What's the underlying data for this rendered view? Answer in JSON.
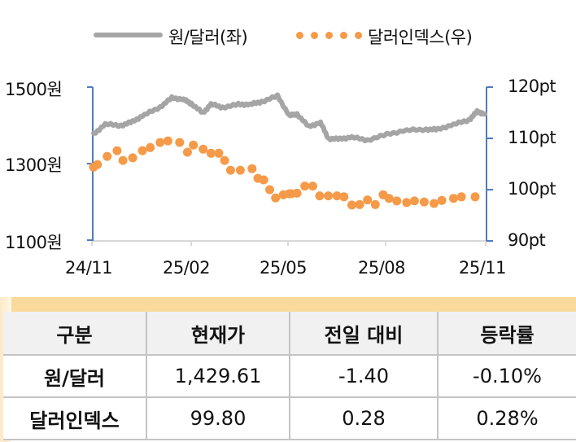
{
  "legend": {
    "series1_label": "원/달러(좌)",
    "series2_label": "달러인덱스(우)"
  },
  "axes": {
    "left_ticks": [
      "1500원",
      "1300원",
      "1100원"
    ],
    "right_ticks": [
      "120pt",
      "110pt",
      "100pt",
      "90pt"
    ],
    "x_ticks": [
      "24/11",
      "25/02",
      "25/05",
      "25/08",
      "25/11"
    ]
  },
  "colors": {
    "krw_usd_line": "#a5a5a5",
    "dollar_index_dots": "#f59a48",
    "axis": "#4f7bbd",
    "table_header_band": "#f9da9c"
  },
  "chart_data": {
    "type": "line",
    "title": "",
    "xlabel": "",
    "ylabel": "원/달러",
    "y2label": "달러인덱스",
    "x_tick_labels": [
      "24/11",
      "25/02",
      "25/05",
      "25/08",
      "25/11"
    ],
    "ylim": [
      1100,
      1500
    ],
    "y2lim": [
      90,
      120
    ],
    "grid": false,
    "legend_position": "top",
    "series": [
      {
        "name": "원/달러(좌)",
        "axis": "left",
        "style": "line",
        "color": "#a5a5a5",
        "x": [
          0,
          0.03,
          0.07,
          0.1,
          0.13,
          0.17,
          0.2,
          0.23,
          0.25,
          0.28,
          0.3,
          0.33,
          0.37,
          0.4,
          0.43,
          0.47,
          0.5,
          0.52,
          0.55,
          0.58,
          0.6,
          0.63,
          0.66,
          0.7,
          0.75,
          0.8,
          0.85,
          0.88,
          0.92,
          0.96,
          0.98,
          1.0
        ],
        "values": [
          1377,
          1404,
          1400,
          1410,
          1428,
          1448,
          1472,
          1468,
          1457,
          1432,
          1456,
          1447,
          1455,
          1455,
          1462,
          1477,
          1426,
          1430,
          1397,
          1408,
          1366,
          1365,
          1370,
          1362,
          1377,
          1388,
          1390,
          1390,
          1403,
          1415,
          1436,
          1430
        ]
      },
      {
        "name": "달러인덱스(우)",
        "axis": "right",
        "style": "dots",
        "color": "#f59a48",
        "x": [
          0.0,
          0.01,
          0.035,
          0.06,
          0.075,
          0.1,
          0.125,
          0.145,
          0.17,
          0.19,
          0.22,
          0.24,
          0.255,
          0.28,
          0.3,
          0.32,
          0.335,
          0.35,
          0.375,
          0.405,
          0.42,
          0.435,
          0.45,
          0.465,
          0.485,
          0.505,
          0.5,
          0.52,
          0.54,
          0.56,
          0.578,
          0.6,
          0.622,
          0.64,
          0.66,
          0.68,
          0.7,
          0.72,
          0.74,
          0.755,
          0.775,
          0.8,
          0.82,
          0.845,
          0.87,
          0.89,
          0.92,
          0.94,
          0.975
        ],
        "values": [
          104.4,
          104.9,
          106.5,
          107.6,
          105.7,
          106.2,
          107.6,
          108.2,
          109.2,
          109.5,
          109.2,
          107.3,
          108.7,
          107.9,
          107.1,
          107.1,
          105.7,
          103.8,
          103.8,
          104.1,
          102.2,
          101.9,
          100.0,
          98.4,
          99.0,
          99.2,
          99.2,
          99.3,
          100.7,
          100.7,
          98.8,
          98.8,
          98.8,
          98.6,
          97.0,
          97.1,
          98.0,
          97.1,
          99.0,
          98.3,
          97.8,
          97.5,
          97.8,
          97.6,
          97.3,
          97.9,
          98.3,
          98.6,
          98.6
        ]
      }
    ]
  },
  "table": {
    "headers": [
      "구분",
      "현재가",
      "전일 대비",
      "등락률"
    ],
    "rows": [
      {
        "name": "원/달러",
        "price": "1,429.61",
        "change": "-1.40",
        "rate": "-0.10%"
      },
      {
        "name": "달러인덱스",
        "price": "99.80",
        "change": "0.28",
        "rate": "0.28%"
      }
    ]
  }
}
